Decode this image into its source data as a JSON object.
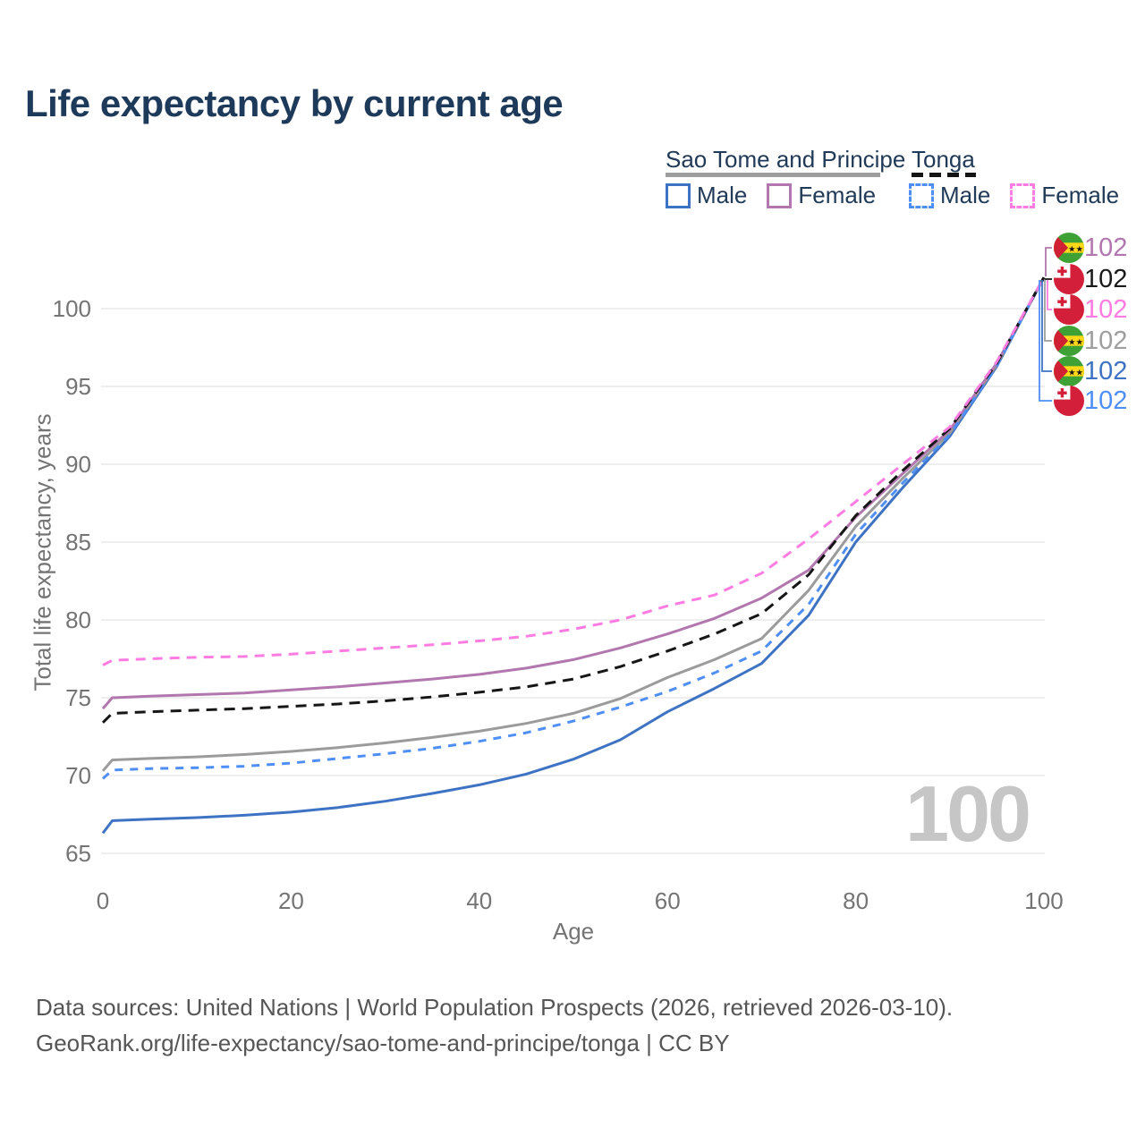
{
  "page": {
    "title": "Life expectancy by current age"
  },
  "legend": {
    "sao": {
      "name": "Sao Tome and Principe",
      "male": "Male",
      "female": "Female",
      "underline_color": "#9e9e9e"
    },
    "tonga": {
      "name": "Tonga",
      "male": "Male",
      "female": "Female",
      "underline_color": "#141414"
    }
  },
  "chart_data": {
    "type": "line",
    "title": "Life expectancy by current age",
    "xlabel": "Age",
    "ylabel": "Total life expectancy, years",
    "xlim": [
      0,
      100
    ],
    "ylim": [
      65,
      103.5
    ],
    "xticks": [
      0,
      20,
      40,
      60,
      80,
      100
    ],
    "yticks": [
      65,
      70,
      75,
      80,
      85,
      90,
      95,
      100
    ],
    "grid": "horizontal",
    "legend_position": "top-right",
    "watermark": "100",
    "x": [
      0,
      1,
      5,
      10,
      15,
      20,
      25,
      30,
      35,
      40,
      45,
      50,
      55,
      60,
      65,
      70,
      75,
      80,
      85,
      90,
      95,
      100
    ],
    "series": [
      {
        "id": "stp-male",
        "name": "Sao Tome and Principe Male",
        "color": "#3e73c4",
        "dash": false,
        "values": [
          66.3,
          67.1,
          67.2,
          67.3,
          67.45,
          67.65,
          67.95,
          68.35,
          68.85,
          69.4,
          70.1,
          71.05,
          72.3,
          74.1,
          75.6,
          77.2,
          80.3,
          85.0,
          88.5,
          91.8,
          96.3,
          102
        ]
      },
      {
        "id": "stp-total",
        "name": "Sao Tome and Principe Both sexes",
        "color": "#9b9b9b",
        "dash": false,
        "values": [
          70.3,
          71.0,
          71.1,
          71.2,
          71.35,
          71.55,
          71.8,
          72.1,
          72.45,
          72.85,
          73.35,
          74.0,
          74.95,
          76.3,
          77.45,
          78.8,
          81.9,
          86.0,
          89.1,
          92.0,
          96.4,
          102
        ]
      },
      {
        "id": "stp-female",
        "name": "Sao Tome and Principe Female",
        "color": "#b177ae",
        "dash": false,
        "values": [
          74.3,
          75.0,
          75.1,
          75.2,
          75.3,
          75.5,
          75.7,
          75.95,
          76.2,
          76.5,
          76.9,
          77.45,
          78.2,
          79.1,
          80.1,
          81.4,
          83.2,
          86.6,
          89.4,
          92.2,
          96.5,
          102
        ]
      },
      {
        "id": "tonga-male",
        "name": "Tonga Male",
        "color": "#4f8ff5",
        "dash": true,
        "values": [
          69.8,
          70.35,
          70.45,
          70.5,
          70.6,
          70.8,
          71.1,
          71.4,
          71.75,
          72.2,
          72.75,
          73.5,
          74.4,
          75.4,
          76.6,
          78.0,
          81.0,
          85.5,
          88.8,
          91.9,
          96.35,
          102
        ]
      },
      {
        "id": "tonga-total",
        "name": "Tonga Both sexes",
        "color": "#161616",
        "dash": true,
        "values": [
          73.4,
          74.0,
          74.1,
          74.2,
          74.3,
          74.45,
          74.6,
          74.8,
          75.05,
          75.35,
          75.7,
          76.2,
          77.0,
          78.0,
          79.1,
          80.4,
          82.9,
          86.7,
          89.6,
          92.3,
          96.5,
          102
        ]
      },
      {
        "id": "tonga-female",
        "name": "Tonga Female",
        "color": "#fc7ce1",
        "dash": true,
        "values": [
          77.1,
          77.4,
          77.5,
          77.6,
          77.65,
          77.8,
          78.0,
          78.2,
          78.4,
          78.65,
          78.95,
          79.4,
          80.0,
          80.9,
          81.6,
          83.0,
          85.2,
          87.6,
          90.0,
          92.4,
          96.6,
          102
        ]
      }
    ]
  },
  "value_labels": [
    {
      "flag": "stp",
      "series": "stp-female",
      "value": "102",
      "color": "#b177ae"
    },
    {
      "flag": "tonga",
      "series": "tonga-total",
      "value": "102",
      "color": "#1a1a1a"
    },
    {
      "flag": "tonga",
      "series": "tonga-female",
      "value": "102",
      "color": "#fc7ce1"
    },
    {
      "flag": "stp",
      "series": "stp-total",
      "value": "102",
      "color": "#9e9e9e"
    },
    {
      "flag": "stp",
      "series": "stp-male",
      "value": "102",
      "color": "#3e73c4"
    },
    {
      "flag": "tonga",
      "series": "tonga-male",
      "value": "102",
      "color": "#4f8ff5"
    }
  ],
  "colors": {
    "title": "#1e3a5a",
    "tick": "#747474",
    "grid": "#eeeeee",
    "footer": "#565656",
    "watermark": "#c6c6c6",
    "flag_stp_green": "#3da135",
    "flag_stp_yellow": "#ffd918",
    "flag_stp_red": "#d02033",
    "flag_tonga_red": "#d41f3a"
  },
  "footer": {
    "line1": "Data sources: United Nations | World Population Prospects (2026, retrieved 2026-03-10).",
    "line2": "GeoRank.org/life-expectancy/sao-tome-and-principe/tonga | CC BY"
  }
}
